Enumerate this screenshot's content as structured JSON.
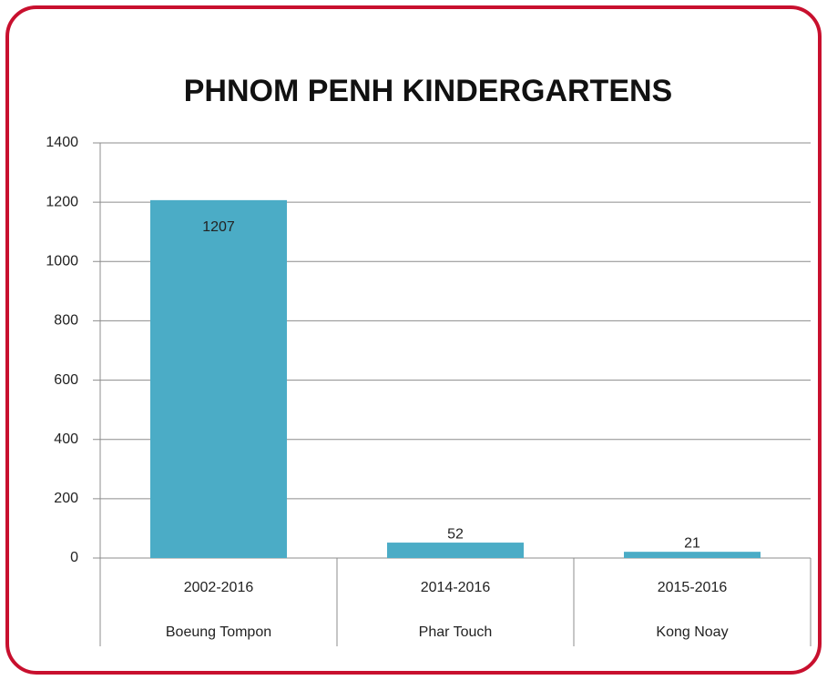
{
  "chart_data": {
    "type": "bar",
    "title": "PHNOM PENH KINDERGARTENS",
    "categories": [
      "2002-2016",
      "2014-2016",
      "2015-2016"
    ],
    "subcategories": [
      "Boeung Tompon",
      "Phar Touch",
      "Kong Noay"
    ],
    "values": [
      1207,
      52,
      21
    ],
    "color": "#4bacc6",
    "ylim": [
      0,
      1400
    ],
    "yticks": [
      0,
      200,
      400,
      600,
      800,
      1000,
      1200,
      1400
    ],
    "grid": true
  }
}
